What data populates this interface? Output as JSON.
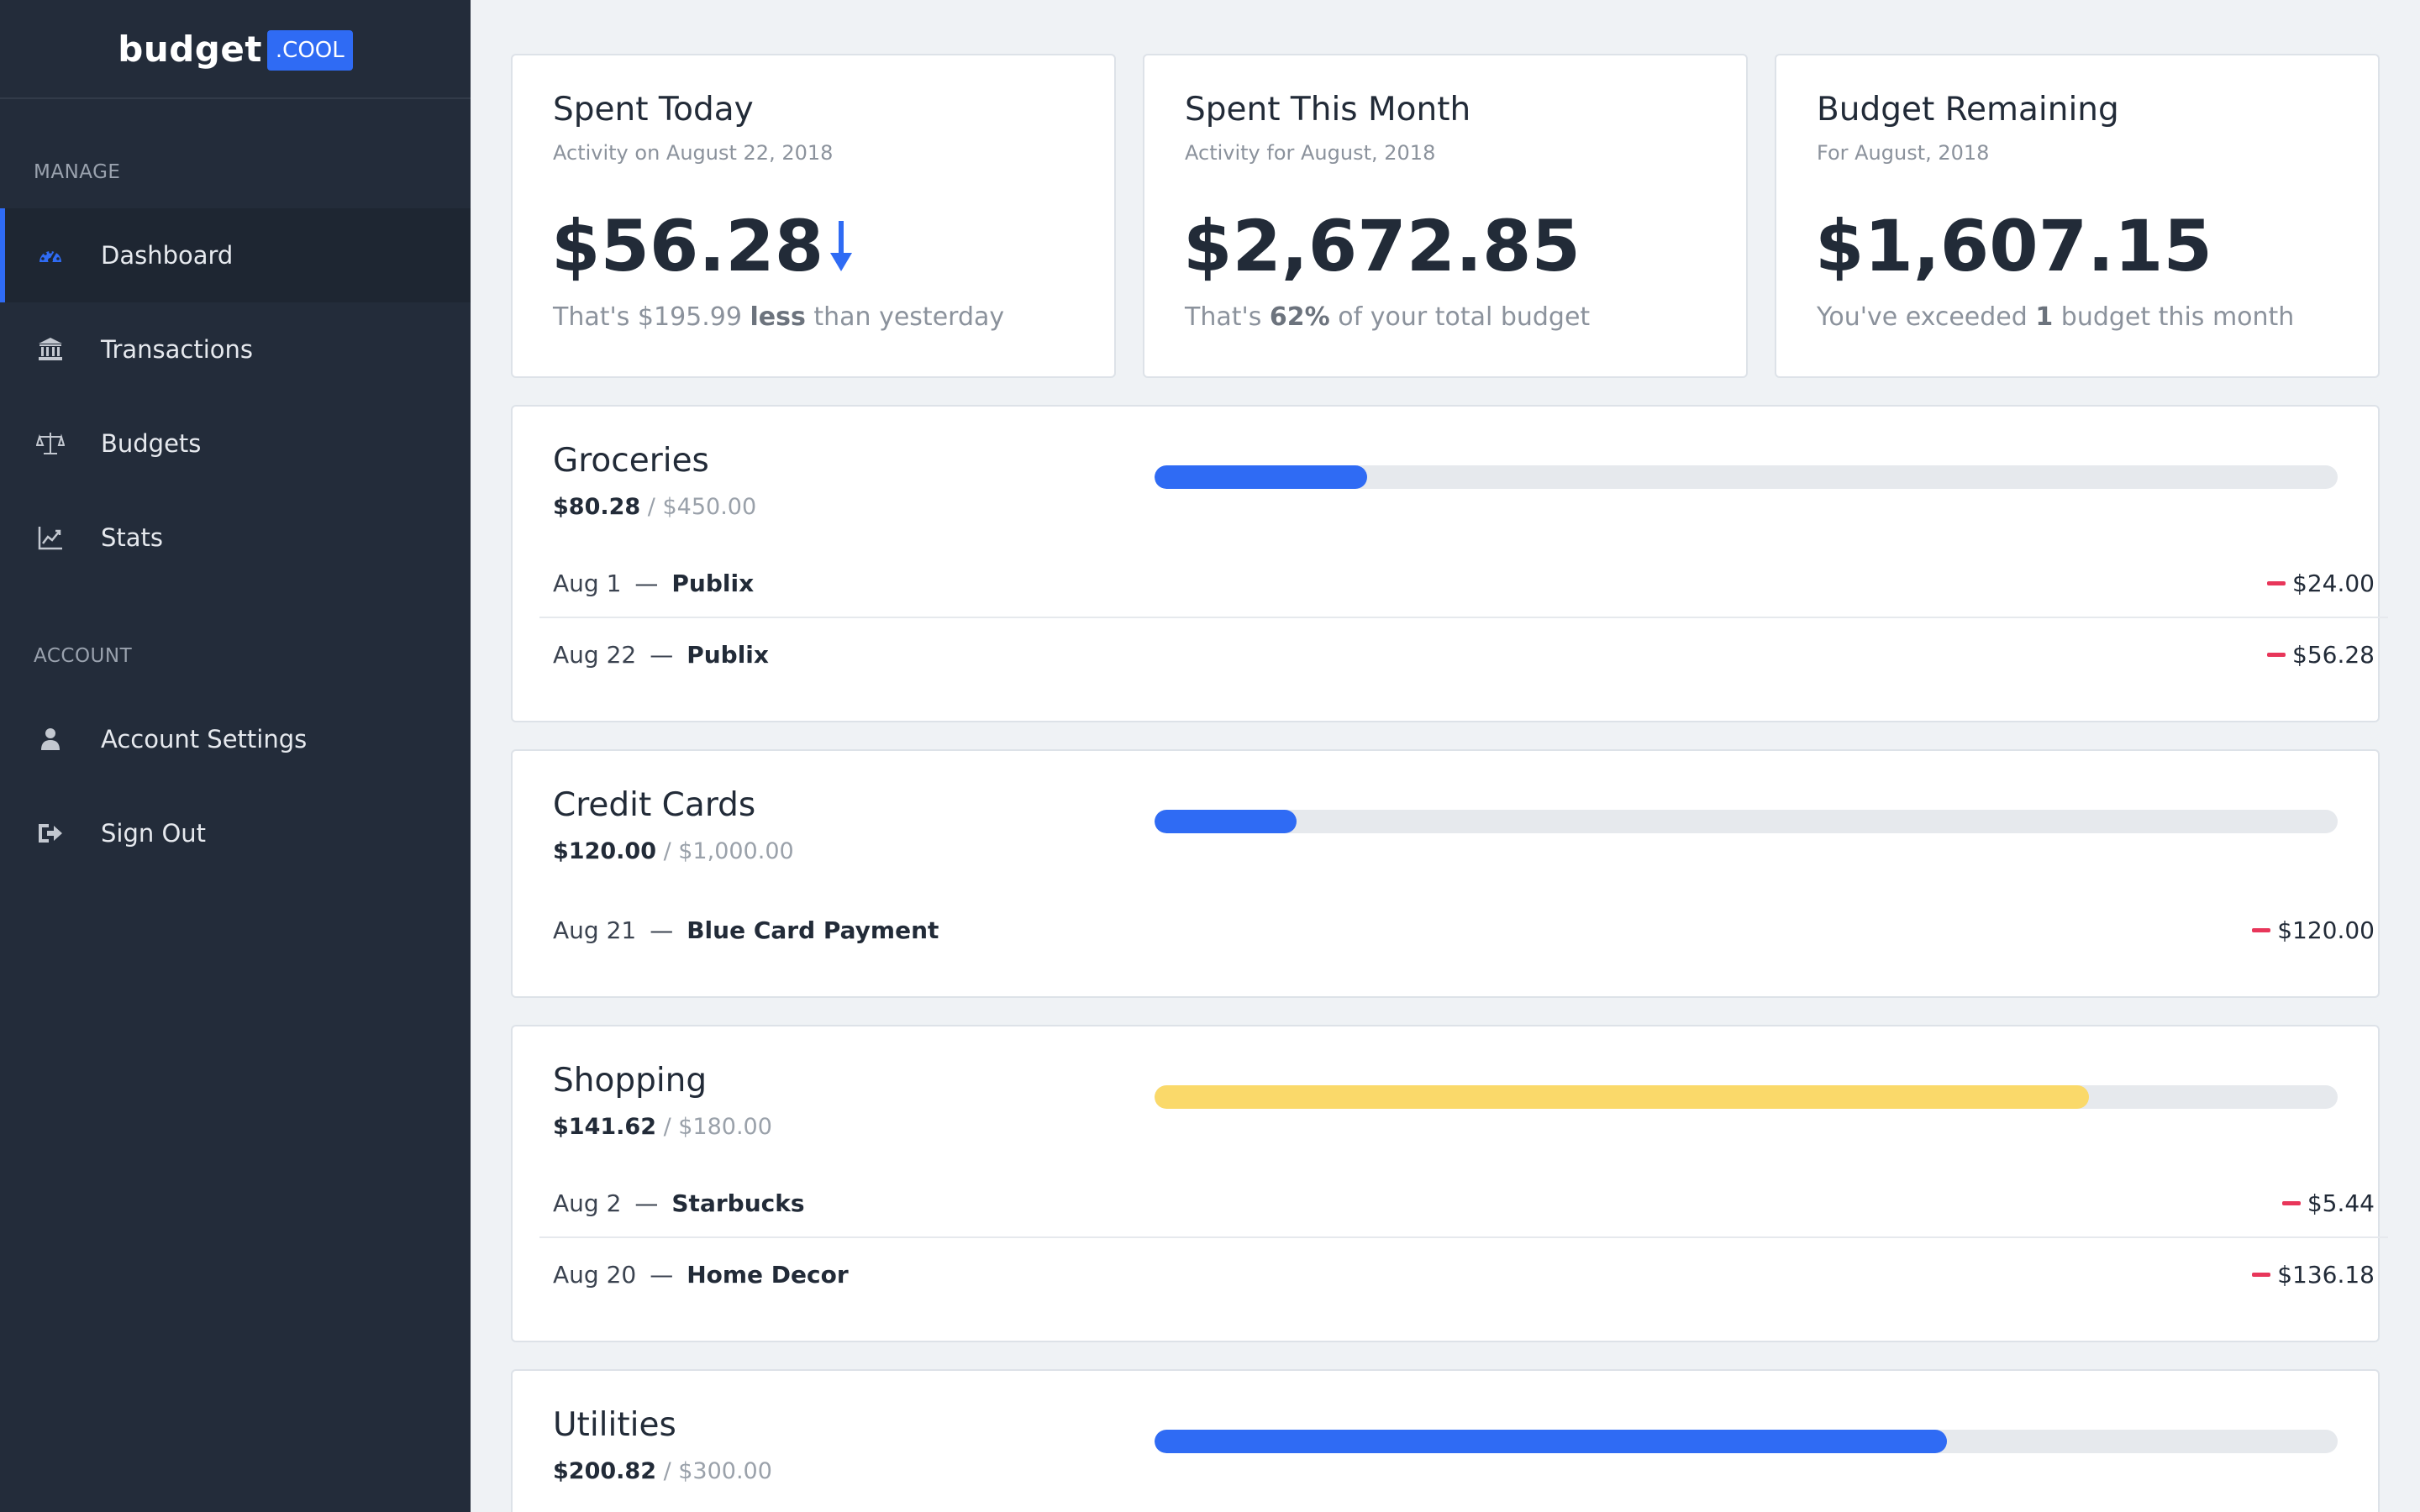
{
  "logo": {
    "word": "budget",
    "badge": ".COOL"
  },
  "sidebar": {
    "manage_label": "MANAGE",
    "account_label": "ACCOUNT",
    "items": [
      {
        "label": "Dashboard",
        "icon": "dashboard-icon"
      },
      {
        "label": "Transactions",
        "icon": "bank-icon"
      },
      {
        "label": "Budgets",
        "icon": "scale-icon"
      },
      {
        "label": "Stats",
        "icon": "chart-icon"
      }
    ],
    "account_items": [
      {
        "label": "Account Settings",
        "icon": "user-icon"
      },
      {
        "label": "Sign Out",
        "icon": "sign-out-icon"
      }
    ]
  },
  "stats": [
    {
      "title": "Spent Today",
      "sub": "Activity on August 22, 2018",
      "value": "$56.28",
      "note_pre": "That's $195.99 ",
      "note_bold": "less",
      "note_post": " than yesterday"
    },
    {
      "title": "Spent This Month",
      "sub": "Activity for August, 2018",
      "value": "$2,672.85",
      "note_pre": "That's ",
      "note_bold": "62%",
      "note_post": " of your total budget"
    },
    {
      "title": "Budget Remaining",
      "sub": "For August, 2018",
      "value": "$1,607.15",
      "note_pre": "You've exceeded ",
      "note_bold": "1",
      "note_post": " budget this month"
    }
  ],
  "budgets": [
    {
      "name": "Groceries",
      "spent": "$80.28",
      "limit": "/ $450.00",
      "progress": 0.18,
      "color": "#2f6bf4",
      "transactions": [
        {
          "date": "Aug 1",
          "dash": "—",
          "payee": "Publix",
          "amount": "$24.00"
        },
        {
          "date": "Aug 22",
          "dash": "—",
          "payee": "Publix",
          "amount": "$56.28"
        }
      ]
    },
    {
      "name": "Credit Cards",
      "spent": "$120.00",
      "limit": "/ $1,000.00",
      "progress": 0.12,
      "color": "#2f6bf4",
      "transactions": [
        {
          "date": "Aug 21",
          "dash": "—",
          "payee": "Blue Card Payment",
          "amount": "$120.00"
        }
      ]
    },
    {
      "name": "Shopping",
      "spent": "$141.62",
      "limit": "/ $180.00",
      "progress": 0.79,
      "color": "#fad96a",
      "transactions": [
        {
          "date": "Aug 2",
          "dash": "—",
          "payee": "Starbucks",
          "amount": "$5.44"
        },
        {
          "date": "Aug 20",
          "dash": "—",
          "payee": "Home Decor",
          "amount": "$136.18"
        }
      ]
    },
    {
      "name": "Utilities",
      "spent": "$200.82",
      "limit": "/ $300.00",
      "progress": 0.67,
      "color": "#2f6bf4",
      "transactions": []
    }
  ],
  "colors": {
    "accent": "#2f6bf4",
    "warning": "#fad96a",
    "negative": "#e8365a",
    "sidebar": "#232c3a"
  }
}
